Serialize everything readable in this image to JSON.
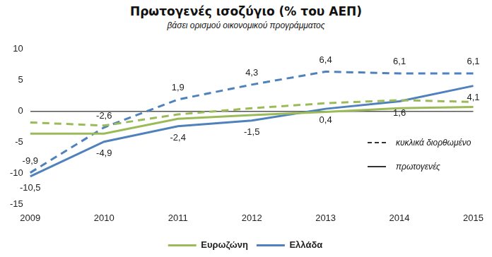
{
  "chart_data": {
    "type": "line",
    "title": "Πρωτογενές ισοζύγιο (% του ΑΕΠ)",
    "subtitle": "βάσει ορισμού οικονομικού προγράμματος",
    "categories": [
      "2009",
      "2010",
      "2011",
      "2012",
      "2013",
      "2014",
      "2015"
    ],
    "series": [
      {
        "name": "Ευρωζώνη",
        "color": "#9bbb59",
        "line_style": "solid",
        "values": [
          -3.6,
          -3.6,
          -1.2,
          -0.6,
          -0.1,
          0.5,
          0.7
        ]
      },
      {
        "name": "Ευρωζώνη",
        "color": "#9bbb59",
        "line_style": "dashed",
        "values": [
          -1.8,
          -2.3,
          -0.5,
          0.5,
          1.3,
          1.8,
          1.5
        ]
      },
      {
        "name": "Ελλάδα",
        "color": "#4f81bd",
        "line_style": "solid",
        "data_labels": true,
        "values": [
          -10.5,
          -4.9,
          -2.4,
          -1.5,
          0.4,
          1.6,
          4.1
        ],
        "value_labels": [
          "-10,5",
          "-4,9",
          "-2,4",
          "-1,5",
          "0,4",
          "1,6",
          "4,1"
        ]
      },
      {
        "name": "Ελλάδα",
        "color": "#4f81bd",
        "line_style": "dashed",
        "data_labels": true,
        "values": [
          -9.9,
          -2.6,
          1.9,
          4.3,
          6.4,
          6.1,
          6.1
        ],
        "value_labels": [
          "-9,9",
          "-2,6",
          "1,9",
          "4,3",
          "6,4",
          "6,1",
          "6,1"
        ]
      }
    ],
    "line_style_legend": [
      {
        "label": "κυκλικά διορθωμένο",
        "line_style": "dashed"
      },
      {
        "label": "πρωτογενές",
        "line_style": "solid"
      }
    ],
    "ylim": [
      -15,
      10
    ],
    "yticks": [
      -15,
      -10,
      -5,
      0,
      5,
      10
    ],
    "grid": false,
    "legend": "bottom",
    "marker": "none"
  }
}
